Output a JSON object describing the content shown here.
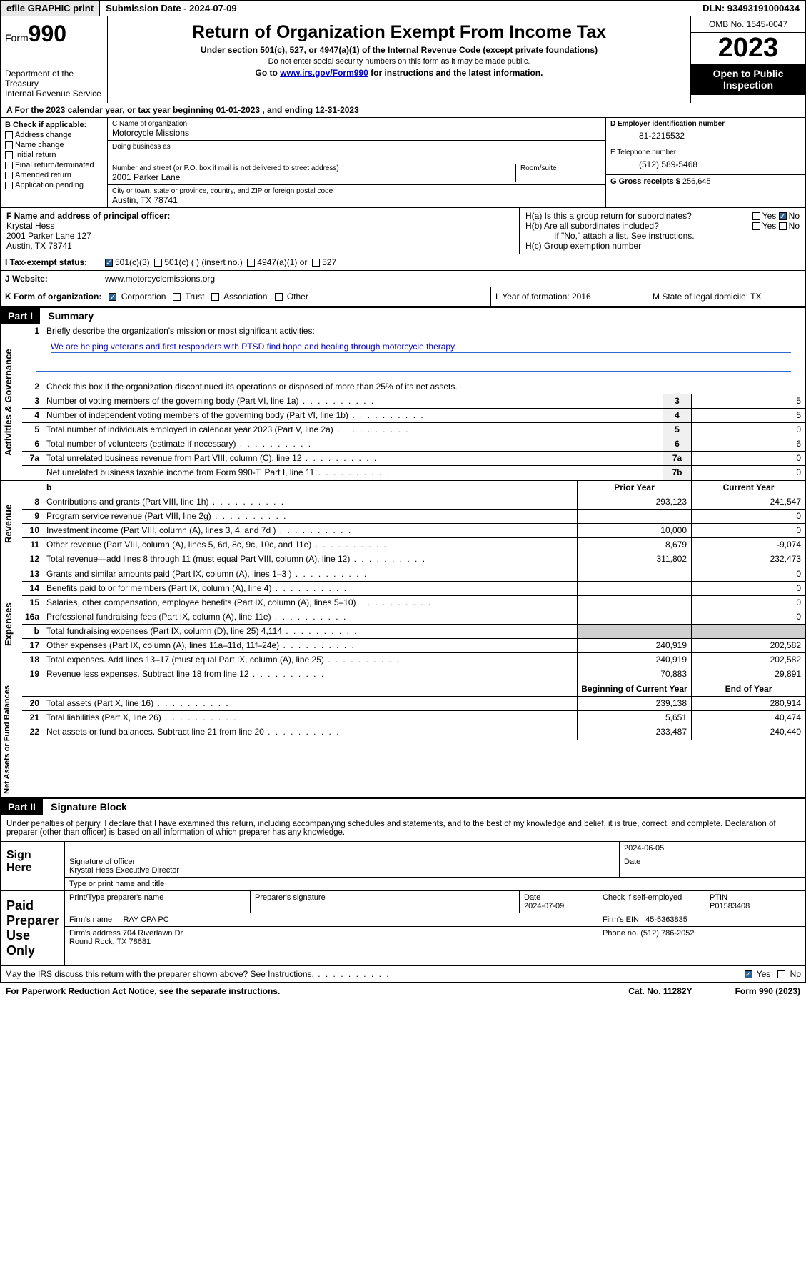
{
  "topbar": {
    "efile": "efile GRAPHIC print",
    "submission": "Submission Date - 2024-07-09",
    "dln": "DLN: 93493191000434"
  },
  "header": {
    "form_label": "Form",
    "form_num": "990",
    "dept": "Department of the Treasury\nInternal Revenue Service",
    "title": "Return of Organization Exempt From Income Tax",
    "subtitle": "Under section 501(c), 527, or 4947(a)(1) of the Internal Revenue Code (except private foundations)",
    "note1": "Do not enter social security numbers on this form as it may be made public.",
    "note2_pre": "Go to ",
    "note2_link": "www.irs.gov/Form990",
    "note2_post": " for instructions and the latest information.",
    "omb": "OMB No. 1545-0047",
    "year": "2023",
    "inspection": "Open to Public Inspection"
  },
  "line_a": "A For the 2023 calendar year, or tax year beginning 01-01-2023   , and ending 12-31-2023",
  "box_b": {
    "header": "B Check if applicable:",
    "items": [
      "Address change",
      "Name change",
      "Initial return",
      "Final return/terminated",
      "Amended return",
      "Application pending"
    ]
  },
  "box_c": {
    "name_lbl": "C Name of organization",
    "name": "Motorcycle Missions",
    "dba_lbl": "Doing business as",
    "addr_lbl": "Number and street (or P.O. box if mail is not delivered to street address)",
    "room_lbl": "Room/suite",
    "addr": "2001 Parker Lane",
    "city_lbl": "City or town, state or province, country, and ZIP or foreign postal code",
    "city": "Austin, TX  78741"
  },
  "box_d": {
    "lbl": "D Employer identification number",
    "val": "81-2215532"
  },
  "box_e": {
    "lbl": "E Telephone number",
    "val": "(512) 589-5468"
  },
  "box_g": {
    "lbl": "G Gross receipts $",
    "val": "256,645"
  },
  "box_f": {
    "lbl": "F  Name and address of principal officer:",
    "name": "Krystal Hess",
    "addr1": "2001 Parker Lane 127",
    "addr2": "Austin, TX  78741"
  },
  "box_h": {
    "a": "H(a)  Is this a group return for subordinates?",
    "b": "H(b)  Are all subordinates included?",
    "note": "If \"No,\" attach a list. See instructions.",
    "c": "H(c)  Group exemption number"
  },
  "tax_status": {
    "lbl": "I  Tax-exempt status:",
    "opts": [
      "501(c)(3)",
      "501(c) (  ) (insert no.)",
      "4947(a)(1) or",
      "527"
    ]
  },
  "website": {
    "lbl": "J  Website:",
    "val": "www.motorcyclemissions.org"
  },
  "box_k": {
    "lbl": "K Form of organization:",
    "opts": [
      "Corporation",
      "Trust",
      "Association",
      "Other"
    ]
  },
  "box_l": "L Year of formation: 2016",
  "box_m": "M State of legal domicile: TX",
  "part1": {
    "num": "Part I",
    "title": "Summary"
  },
  "summary": {
    "q1": "Briefly describe the organization's mission or most significant activities:",
    "mission": "We are helping veterans and first responders with PTSD find hope and healing through motorcycle therapy.",
    "q2": "Check this box      if the organization discontinued its operations or disposed of more than 25% of its net assets.",
    "rows_gov": [
      {
        "n": "3",
        "d": "Number of voting members of the governing body (Part VI, line 1a)",
        "k": "3",
        "v": "5"
      },
      {
        "n": "4",
        "d": "Number of independent voting members of the governing body (Part VI, line 1b)",
        "k": "4",
        "v": "5"
      },
      {
        "n": "5",
        "d": "Total number of individuals employed in calendar year 2023 (Part V, line 2a)",
        "k": "5",
        "v": "0"
      },
      {
        "n": "6",
        "d": "Total number of volunteers (estimate if necessary)",
        "k": "6",
        "v": "6"
      },
      {
        "n": "7a",
        "d": "Total unrelated business revenue from Part VIII, column (C), line 12",
        "k": "7a",
        "v": "0"
      },
      {
        "n": "",
        "d": "Net unrelated business taxable income from Form 990-T, Part I, line 11",
        "k": "7b",
        "v": "0"
      }
    ],
    "col_prior": "Prior Year",
    "col_curr": "Current Year",
    "rows_rev": [
      {
        "n": "8",
        "d": "Contributions and grants (Part VIII, line 1h)",
        "p": "293,123",
        "c": "241,547"
      },
      {
        "n": "9",
        "d": "Program service revenue (Part VIII, line 2g)",
        "p": "",
        "c": "0"
      },
      {
        "n": "10",
        "d": "Investment income (Part VIII, column (A), lines 3, 4, and 7d )",
        "p": "10,000",
        "c": "0"
      },
      {
        "n": "11",
        "d": "Other revenue (Part VIII, column (A), lines 5, 6d, 8c, 9c, 10c, and 11e)",
        "p": "8,679",
        "c": "-9,074"
      },
      {
        "n": "12",
        "d": "Total revenue—add lines 8 through 11 (must equal Part VIII, column (A), line 12)",
        "p": "311,802",
        "c": "232,473"
      }
    ],
    "rows_exp": [
      {
        "n": "13",
        "d": "Grants and similar amounts paid (Part IX, column (A), lines 1–3 )",
        "p": "",
        "c": "0"
      },
      {
        "n": "14",
        "d": "Benefits paid to or for members (Part IX, column (A), line 4)",
        "p": "",
        "c": "0"
      },
      {
        "n": "15",
        "d": "Salaries, other compensation, employee benefits (Part IX, column (A), lines 5–10)",
        "p": "",
        "c": "0"
      },
      {
        "n": "16a",
        "d": "Professional fundraising fees (Part IX, column (A), line 11e)",
        "p": "",
        "c": "0"
      },
      {
        "n": "b",
        "d": "Total fundraising expenses (Part IX, column (D), line 25) 4,114",
        "p": "grey",
        "c": "grey"
      },
      {
        "n": "17",
        "d": "Other expenses (Part IX, column (A), lines 11a–11d, 11f–24e)",
        "p": "240,919",
        "c": "202,582"
      },
      {
        "n": "18",
        "d": "Total expenses. Add lines 13–17 (must equal Part IX, column (A), line 25)",
        "p": "240,919",
        "c": "202,582"
      },
      {
        "n": "19",
        "d": "Revenue less expenses. Subtract line 18 from line 12",
        "p": "70,883",
        "c": "29,891"
      }
    ],
    "col_beg": "Beginning of Current Year",
    "col_end": "End of Year",
    "rows_net": [
      {
        "n": "20",
        "d": "Total assets (Part X, line 16)",
        "p": "239,138",
        "c": "280,914"
      },
      {
        "n": "21",
        "d": "Total liabilities (Part X, line 26)",
        "p": "5,651",
        "c": "40,474"
      },
      {
        "n": "22",
        "d": "Net assets or fund balances. Subtract line 21 from line 20",
        "p": "233,487",
        "c": "240,440"
      }
    ],
    "tab_gov": "Activities & Governance",
    "tab_rev": "Revenue",
    "tab_exp": "Expenses",
    "tab_net": "Net Assets or Fund Balances"
  },
  "part2": {
    "num": "Part II",
    "title": "Signature Block"
  },
  "sig": {
    "penalty": "Under penalties of perjury, I declare that I have examined this return, including accompanying schedules and statements, and to the best of my knowledge and belief, it is true, correct, and complete. Declaration of preparer (other than officer) is based on all information of which preparer has any knowledge.",
    "sign_here": "Sign Here",
    "sig_officer": "Signature of officer",
    "officer_name": "Krystal Hess  Executive Director",
    "type_name": "Type or print name and title",
    "date_lbl": "Date",
    "date1": "2024-06-05",
    "paid": "Paid Preparer Use Only",
    "prep_name_lbl": "Print/Type preparer's name",
    "prep_sig_lbl": "Preparer's signature",
    "date2": "2024-07-09",
    "selfemp": "Check       if self-employed",
    "ptin_lbl": "PTIN",
    "ptin": "P01583408",
    "firm_name_lbl": "Firm's name",
    "firm_name": "RAY CPA PC",
    "firm_ein_lbl": "Firm's EIN",
    "firm_ein": "45-5363835",
    "firm_addr_lbl": "Firm's address",
    "firm_addr": "704 Riverlawn Dr\nRound Rock, TX  78681",
    "phone_lbl": "Phone no.",
    "phone": "(512) 786-2052",
    "discuss": "May the IRS discuss this return with the preparer shown above? See Instructions."
  },
  "footer": {
    "left": "For Paperwork Reduction Act Notice, see the separate instructions.",
    "mid": "Cat. No. 11282Y",
    "right": "Form 990 (2023)"
  },
  "yesno": {
    "yes": "Yes",
    "no": "No"
  }
}
